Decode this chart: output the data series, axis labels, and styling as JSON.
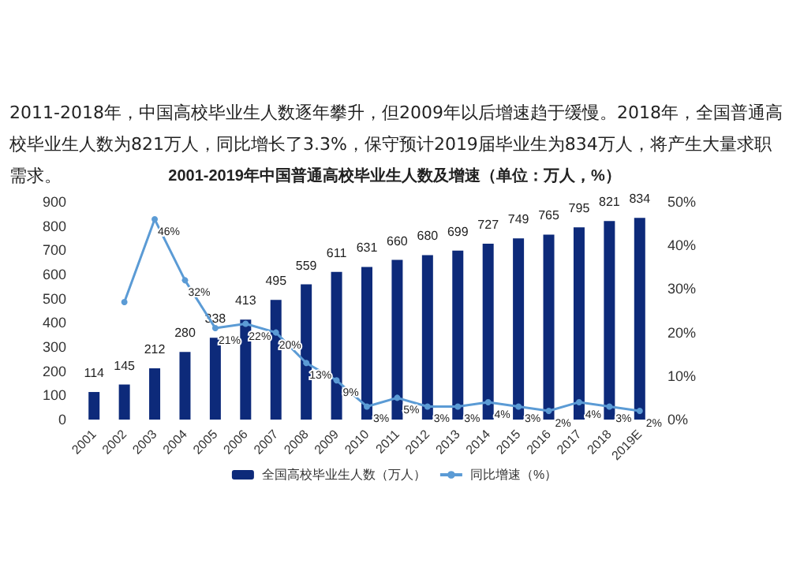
{
  "chart_data": {
    "type": "bar",
    "title": "2001-2019年中国普通高校毕业生人数及增速（单位：万人，%）",
    "annotations": [
      "2011-2018年，中国高校毕业生人数逐年攀升，但2009年以后增速趋于缓慢。2018年，全国普通高校毕业生人数为821万人，同比增长了3.3%，保守预计2019届毕业生为834万人，将产生大量求职需求。"
    ],
    "categories": [
      "2001",
      "2002",
      "2003",
      "2004",
      "2005",
      "2006",
      "2007",
      "2008",
      "2009",
      "2010",
      "2011",
      "2012",
      "2013",
      "2014",
      "2015",
      "2016",
      "2017",
      "2018",
      "2019E"
    ],
    "series": [
      {
        "name": "全国高校毕业生人数（万人）",
        "type": "bar",
        "color": "#0d2a7a",
        "values": [
          114,
          145,
          212,
          280,
          338,
          413,
          495,
          559,
          611,
          631,
          660,
          680,
          699,
          727,
          749,
          765,
          795,
          821,
          834
        ],
        "value_labels": [
          "114",
          "145",
          "212",
          "280",
          "338",
          "413",
          "495",
          "559",
          "611",
          "631",
          "660",
          "680",
          "699",
          "727",
          "749",
          "765",
          "795",
          "821",
          "834"
        ]
      },
      {
        "name": "同比增速（%）",
        "type": "line",
        "axis": "y2",
        "color": "#5b9bd5",
        "values": [
          null,
          27,
          46,
          32,
          21,
          22,
          20,
          13,
          9,
          3,
          5,
          3,
          3,
          4,
          3,
          2,
          4,
          3,
          2
        ],
        "value_labels": [
          null,
          null,
          "46%",
          "32%",
          "21%",
          "22%",
          "20%",
          "13%",
          "9%",
          "3%",
          "5%",
          "3%",
          "3%",
          "4%",
          "3%",
          "2%",
          "4%",
          "3%",
          "2%"
        ]
      }
    ],
    "ylim": [
      0,
      900
    ],
    "yticks": [
      0,
      100,
      200,
      300,
      400,
      500,
      600,
      700,
      800,
      900
    ],
    "y2lim": [
      0,
      50
    ],
    "y2ticks": [
      {
        "value": 0,
        "label": "0%"
      },
      {
        "value": 10,
        "label": "10%"
      },
      {
        "value": 20,
        "label": "20%"
      },
      {
        "value": 30,
        "label": "30%"
      },
      {
        "value": 40,
        "label": "40%"
      },
      {
        "value": 50,
        "label": "50%"
      }
    ],
    "grid": false,
    "legend": "bottom",
    "marker": "circle",
    "line_style": "solid"
  }
}
